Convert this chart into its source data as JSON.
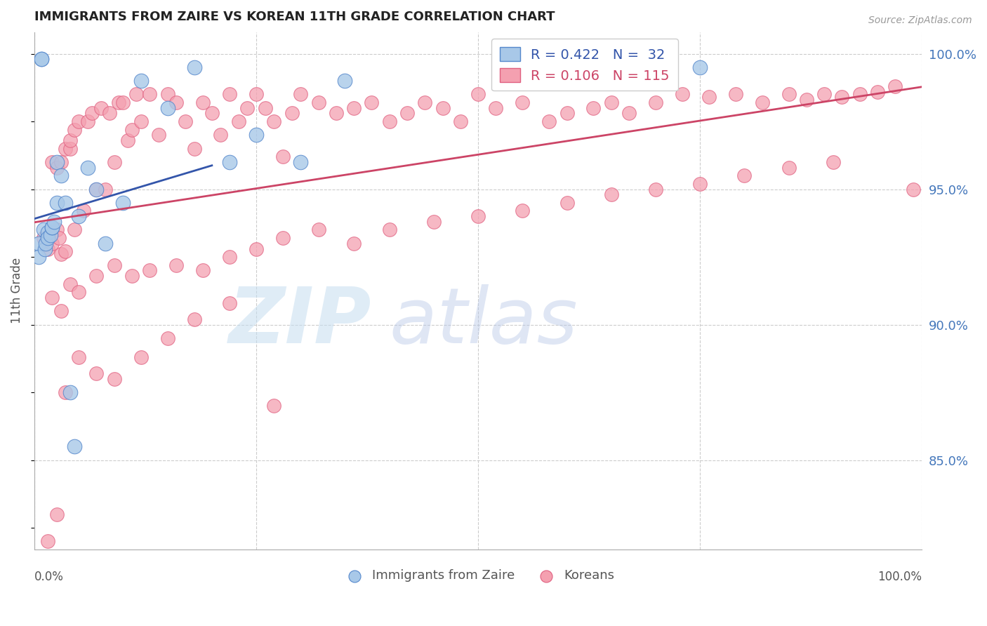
{
  "title": "IMMIGRANTS FROM ZAIRE VS KOREAN 11TH GRADE CORRELATION CHART",
  "source": "Source: ZipAtlas.com",
  "ylabel": "11th Grade",
  "legend_label1": "Immigrants from Zaire",
  "legend_label2": "Koreans",
  "R1": 0.422,
  "N1": 32,
  "R2": 0.106,
  "N2": 115,
  "right_yticks": [
    "100.0%",
    "95.0%",
    "90.0%",
    "85.0%"
  ],
  "right_ytick_vals": [
    1.0,
    0.95,
    0.9,
    0.85
  ],
  "color_blue_face": "#A8C8E8",
  "color_blue_edge": "#5588CC",
  "color_pink_face": "#F4A0B0",
  "color_pink_edge": "#E06080",
  "color_blue_line": "#3355AA",
  "color_pink_line": "#CC4466",
  "color_label": "#4477BB",
  "watermark_zip": "ZIP",
  "watermark_atlas": "atlas",
  "blue_x": [
    0.5,
    0.5,
    0.8,
    0.8,
    1.0,
    1.2,
    1.3,
    1.5,
    1.5,
    1.8,
    2.0,
    2.0,
    2.2,
    2.5,
    2.5,
    3.0,
    3.5,
    4.0,
    4.5,
    5.0,
    6.0,
    7.0,
    8.0,
    10.0,
    12.0,
    15.0,
    18.0,
    22.0,
    25.0,
    30.0,
    35.0,
    75.0
  ],
  "blue_y": [
    0.93,
    0.925,
    0.998,
    0.998,
    0.935,
    0.928,
    0.93,
    0.934,
    0.932,
    0.933,
    0.936,
    0.936,
    0.938,
    0.945,
    0.96,
    0.955,
    0.945,
    0.875,
    0.855,
    0.94,
    0.958,
    0.95,
    0.93,
    0.945,
    0.99,
    0.98,
    0.995,
    0.96,
    0.97,
    0.96,
    0.99,
    0.995
  ],
  "pink_x": [
    1.0,
    1.5,
    2.0,
    2.0,
    2.5,
    2.5,
    2.8,
    3.0,
    3.0,
    3.5,
    3.5,
    4.0,
    4.0,
    4.5,
    4.5,
    5.0,
    5.5,
    6.0,
    6.5,
    7.0,
    7.5,
    8.0,
    8.5,
    9.0,
    9.5,
    10.0,
    10.5,
    11.0,
    11.5,
    12.0,
    13.0,
    14.0,
    15.0,
    16.0,
    17.0,
    18.0,
    19.0,
    20.0,
    21.0,
    22.0,
    23.0,
    24.0,
    25.0,
    26.0,
    27.0,
    28.0,
    29.0,
    30.0,
    32.0,
    34.0,
    36.0,
    38.0,
    40.0,
    42.0,
    44.0,
    46.0,
    48.0,
    50.0,
    52.0,
    55.0,
    58.0,
    60.0,
    63.0,
    65.0,
    67.0,
    70.0,
    73.0,
    76.0,
    79.0,
    82.0,
    85.0,
    87.0,
    89.0,
    91.0,
    93.0,
    95.0,
    97.0,
    99.0,
    2.0,
    3.0,
    4.0,
    5.0,
    7.0,
    9.0,
    11.0,
    13.0,
    16.0,
    19.0,
    22.0,
    25.0,
    28.0,
    32.0,
    36.0,
    40.0,
    45.0,
    50.0,
    55.0,
    60.0,
    65.0,
    70.0,
    75.0,
    80.0,
    85.0,
    90.0,
    1.5,
    2.5,
    3.5,
    5.0,
    7.0,
    9.0,
    12.0,
    15.0,
    18.0,
    22.0,
    27.0
  ],
  "pink_y": [
    0.932,
    0.928,
    0.96,
    0.93,
    0.935,
    0.958,
    0.932,
    0.96,
    0.926,
    0.965,
    0.927,
    0.965,
    0.968,
    0.935,
    0.972,
    0.975,
    0.942,
    0.975,
    0.978,
    0.95,
    0.98,
    0.95,
    0.978,
    0.96,
    0.982,
    0.982,
    0.968,
    0.972,
    0.985,
    0.975,
    0.985,
    0.97,
    0.985,
    0.982,
    0.975,
    0.965,
    0.982,
    0.978,
    0.97,
    0.985,
    0.975,
    0.98,
    0.985,
    0.98,
    0.975,
    0.962,
    0.978,
    0.985,
    0.982,
    0.978,
    0.98,
    0.982,
    0.975,
    0.978,
    0.982,
    0.98,
    0.975,
    0.985,
    0.98,
    0.982,
    0.975,
    0.978,
    0.98,
    0.982,
    0.978,
    0.982,
    0.985,
    0.984,
    0.985,
    0.982,
    0.985,
    0.983,
    0.985,
    0.984,
    0.985,
    0.986,
    0.988,
    0.95,
    0.91,
    0.905,
    0.915,
    0.912,
    0.918,
    0.922,
    0.918,
    0.92,
    0.922,
    0.92,
    0.925,
    0.928,
    0.932,
    0.935,
    0.93,
    0.935,
    0.938,
    0.94,
    0.942,
    0.945,
    0.948,
    0.95,
    0.952,
    0.955,
    0.958,
    0.96,
    0.82,
    0.83,
    0.875,
    0.888,
    0.882,
    0.88,
    0.888,
    0.895,
    0.902,
    0.908,
    0.87
  ]
}
